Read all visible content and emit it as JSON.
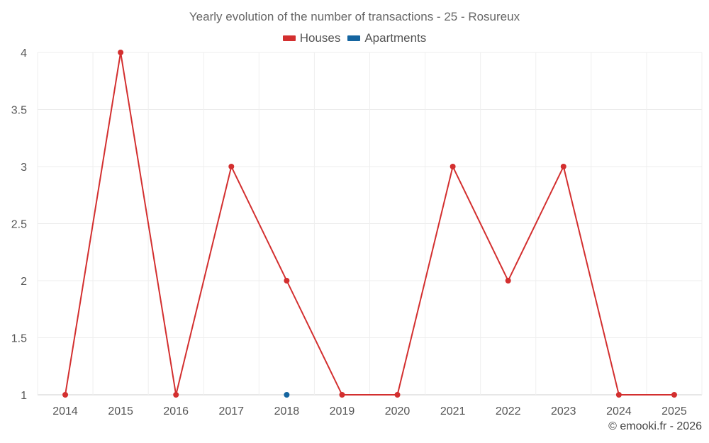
{
  "chart_data": {
    "type": "line",
    "title": "Yearly evolution of the number of transactions - 25 - Rosureux",
    "categories": [
      "2014",
      "2015",
      "2016",
      "2017",
      "2018",
      "2019",
      "2020",
      "2021",
      "2022",
      "2023",
      "2024",
      "2025"
    ],
    "series": [
      {
        "name": "Houses",
        "color": "#d32f2f",
        "values": [
          1,
          4,
          1,
          3,
          2,
          1,
          1,
          3,
          2,
          3,
          1,
          1
        ]
      },
      {
        "name": "Apartments",
        "color": "#1565a0",
        "values": [
          null,
          null,
          null,
          null,
          1,
          null,
          null,
          null,
          null,
          null,
          null,
          null
        ]
      }
    ],
    "yticks": [
      "1",
      "1.5",
      "2",
      "2.5",
      "3",
      "3.5",
      "4"
    ],
    "ylim": [
      1,
      4
    ],
    "xlabel": "",
    "ylabel": "",
    "legend_position": "top-center",
    "grid": true
  },
  "footer": {
    "copyright": "© emooki.fr - 2026"
  }
}
